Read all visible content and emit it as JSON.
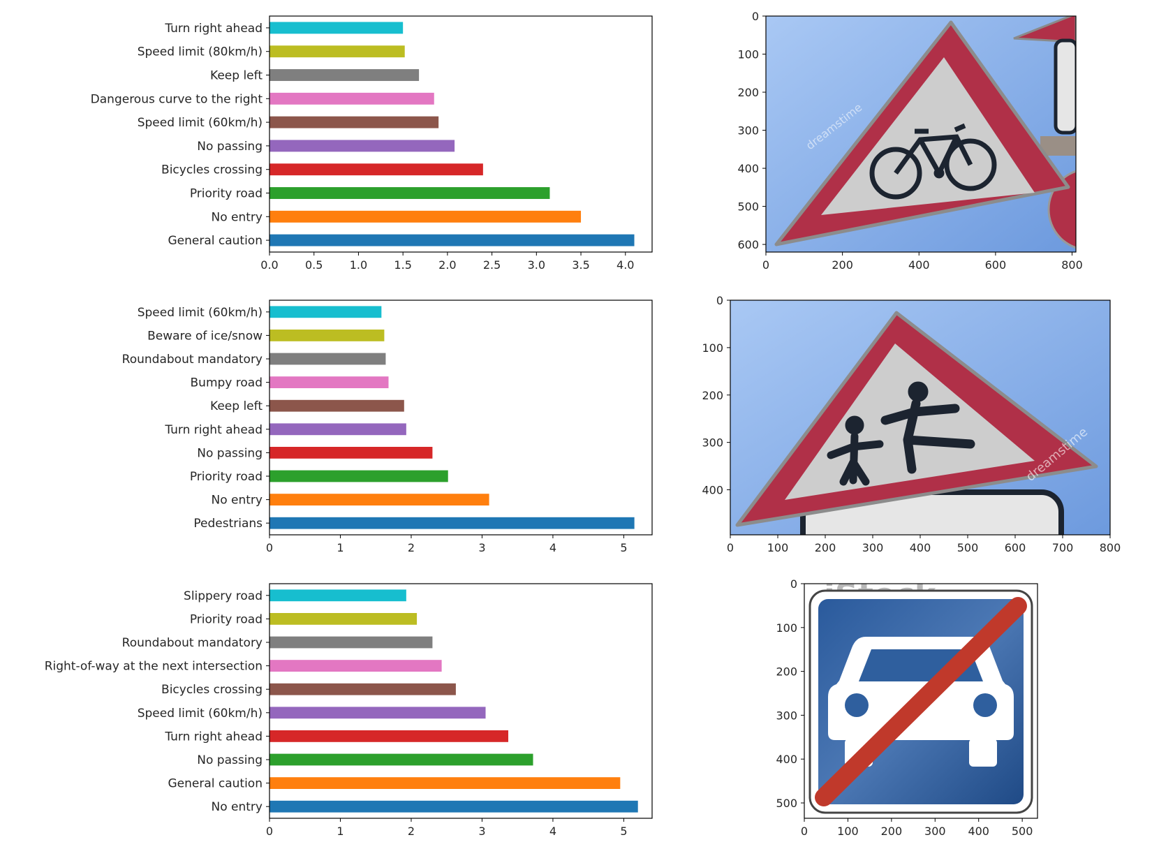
{
  "colors": {
    "tab10": [
      "#1f77b4",
      "#ff7f0e",
      "#2ca02c",
      "#d62728",
      "#9467bd",
      "#8c564b",
      "#e377c2",
      "#7f7f7f",
      "#bcbd22",
      "#17becf"
    ],
    "sky_light": "#9dbff0",
    "sky_mid": "#6f9fe0",
    "sign_red": "#b03048",
    "sign_red_dark": "#8a2035",
    "sign_inner": "#cfcfcf",
    "sign_blue": "#1f4e8c",
    "slash_red": "#c0392b",
    "pictogram": "#1c2430"
  },
  "chart_data": [
    {
      "type": "bar",
      "orientation": "horizontal",
      "categories": [
        "General caution",
        "No entry",
        "Priority road",
        "Bicycles crossing",
        "No passing",
        "Speed limit (60km/h)",
        "Dangerous curve to the right",
        "Keep left",
        "Speed limit (80km/h)",
        "Turn right ahead"
      ],
      "values": [
        4.1,
        3.5,
        3.15,
        2.4,
        2.08,
        1.9,
        1.85,
        1.68,
        1.52,
        1.5
      ],
      "xlim": [
        0,
        4.3
      ],
      "xticks": [
        "0.0",
        "0.5",
        "1.0",
        "1.5",
        "2.0",
        "2.5",
        "3.0",
        "3.5",
        "4.0"
      ],
      "grid": false,
      "legend": "none"
    },
    {
      "type": "image",
      "depicts": "bicycle-crossing-warning-sign",
      "xlim": [
        0,
        810
      ],
      "ylim": [
        620,
        0
      ],
      "xticks": [
        "0",
        "200",
        "400",
        "600",
        "800"
      ],
      "yticks": [
        "0",
        "100",
        "200",
        "300",
        "400",
        "500",
        "600"
      ],
      "watermark": "dreamstime"
    },
    {
      "type": "bar",
      "orientation": "horizontal",
      "categories": [
        "Pedestrians",
        "No entry",
        "Priority road",
        "No passing",
        "Turn right ahead",
        "Keep left",
        "Bumpy road",
        "Roundabout mandatory",
        "Beware of ice/snow",
        "Speed limit (60km/h)"
      ],
      "values": [
        5.15,
        3.1,
        2.52,
        2.3,
        1.93,
        1.9,
        1.68,
        1.64,
        1.62,
        1.58
      ],
      "xlim": [
        0,
        5.4
      ],
      "xticks": [
        "0",
        "1",
        "2",
        "3",
        "4",
        "5"
      ],
      "grid": false,
      "legend": "none"
    },
    {
      "type": "image",
      "depicts": "pedestrians-warning-sign",
      "xlim": [
        0,
        800
      ],
      "ylim": [
        495,
        0
      ],
      "xticks": [
        "0",
        "100",
        "200",
        "300",
        "400",
        "500",
        "600",
        "700",
        "800"
      ],
      "yticks": [
        "0",
        "100",
        "200",
        "300",
        "400"
      ],
      "watermark": "dreamstime"
    },
    {
      "type": "bar",
      "orientation": "horizontal",
      "categories": [
        "No entry",
        "General caution",
        "No passing",
        "Turn right ahead",
        "Speed limit (60km/h)",
        "Bicycles crossing",
        "Right-of-way at the next intersection",
        "Roundabout mandatory",
        "Priority road",
        "Slippery road"
      ],
      "values": [
        5.2,
        4.95,
        3.72,
        3.37,
        3.05,
        2.63,
        2.43,
        2.3,
        2.08,
        1.93
      ],
      "xlim": [
        0,
        5.4
      ],
      "xticks": [
        "0",
        "1",
        "2",
        "3",
        "4",
        "5"
      ],
      "grid": false,
      "legend": "none"
    },
    {
      "type": "image",
      "depicts": "end-of-motorway-sign",
      "xlim": [
        0,
        535
      ],
      "ylim": [
        535,
        0
      ],
      "xticks": [
        "0",
        "100",
        "200",
        "300",
        "400",
        "500"
      ],
      "yticks": [
        "0",
        "100",
        "200",
        "300",
        "400",
        "500"
      ],
      "watermark": "iStock"
    }
  ]
}
